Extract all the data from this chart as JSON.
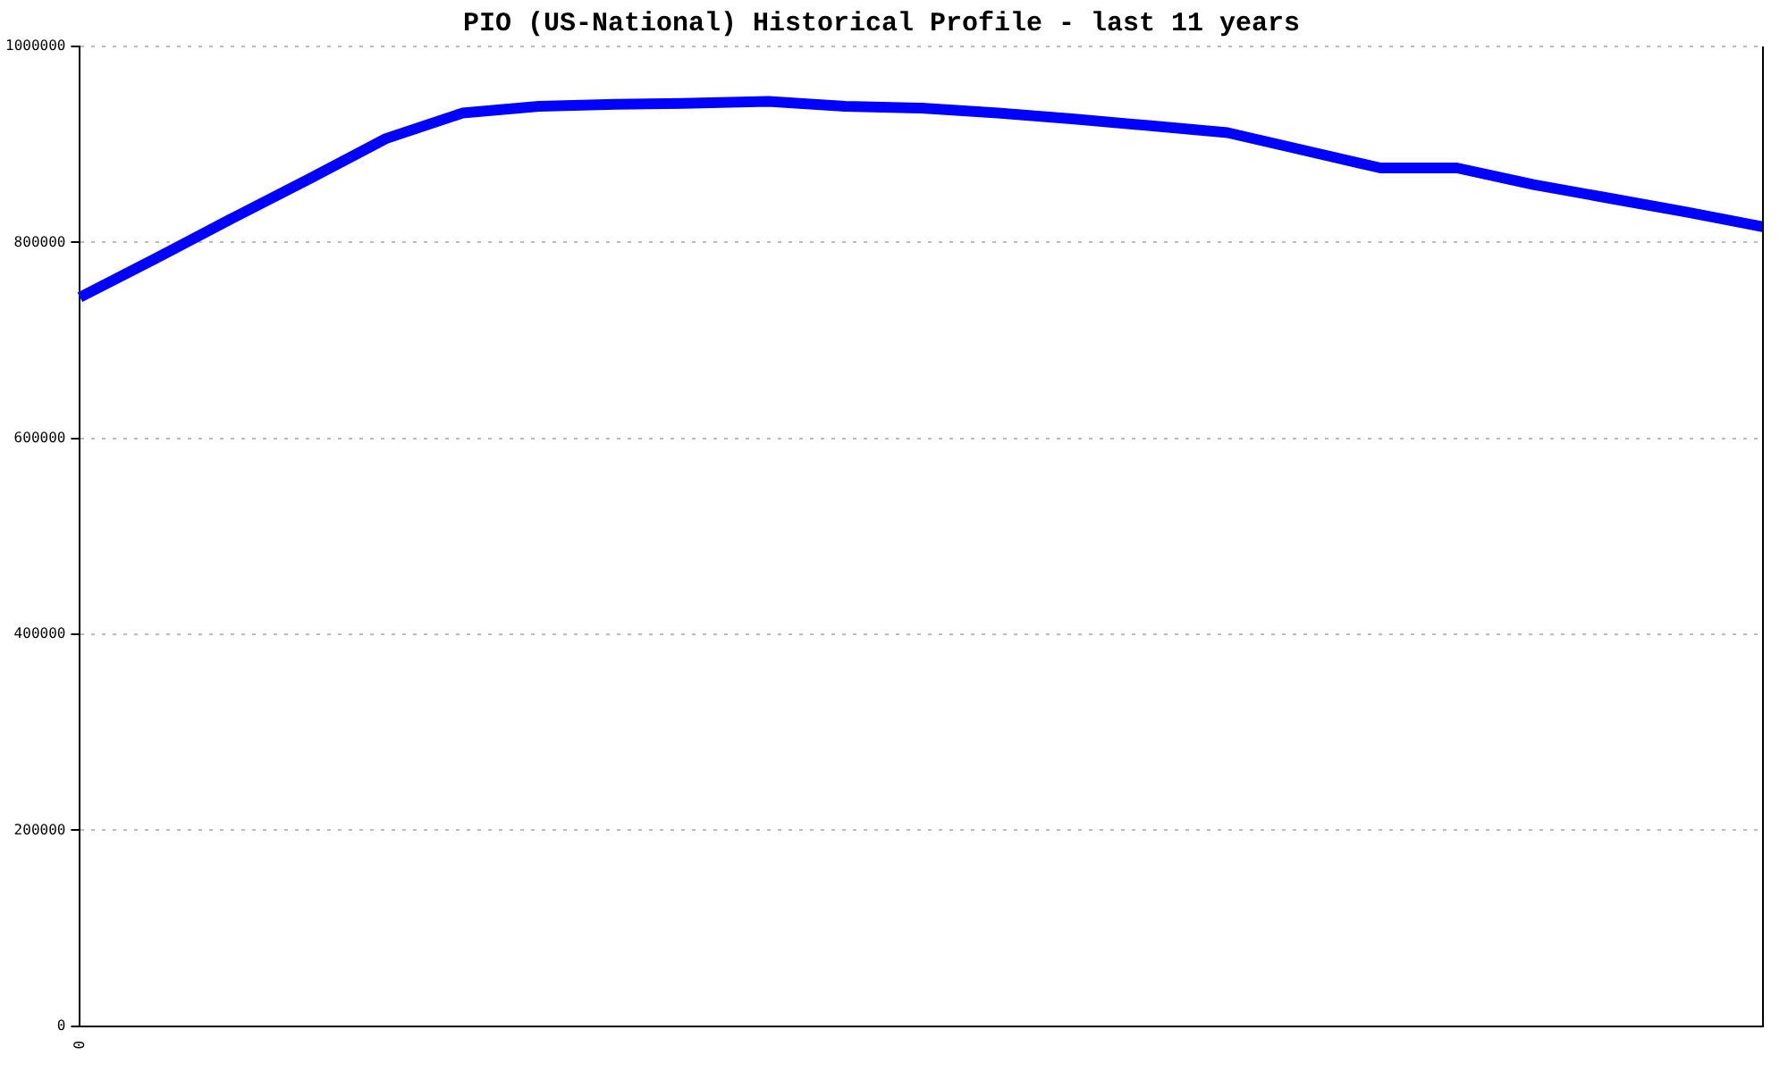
{
  "chart_data": {
    "type": "line",
    "title": "PIO (US-National) Historical Profile - last 11 years",
    "categories": [
      null,
      null,
      null,
      null,
      null,
      null,
      null,
      null,
      null,
      null,
      null,
      null,
      null,
      null,
      null,
      null,
      null,
      null,
      null,
      null,
      null,
      null,
      null
    ],
    "series": [
      {
        "color": "#0000ff",
        "values": [
          744000,
          784000,
          825000,
          865000,
          906000,
          932000,
          939000,
          941000,
          942000,
          944000,
          939000,
          937000,
          932000,
          926000,
          919000,
          912000,
          894000,
          876000,
          876000,
          859000,
          845000,
          831000,
          816000
        ]
      }
    ],
    "ylim": [
      0,
      1000000
    ],
    "yticks": [
      0,
      200000,
      400000,
      600000,
      800000,
      1000000
    ],
    "annotations": [
      "0"
    ],
    "grid": "y",
    "legend": false,
    "marker": "none",
    "line_style": "solid"
  }
}
